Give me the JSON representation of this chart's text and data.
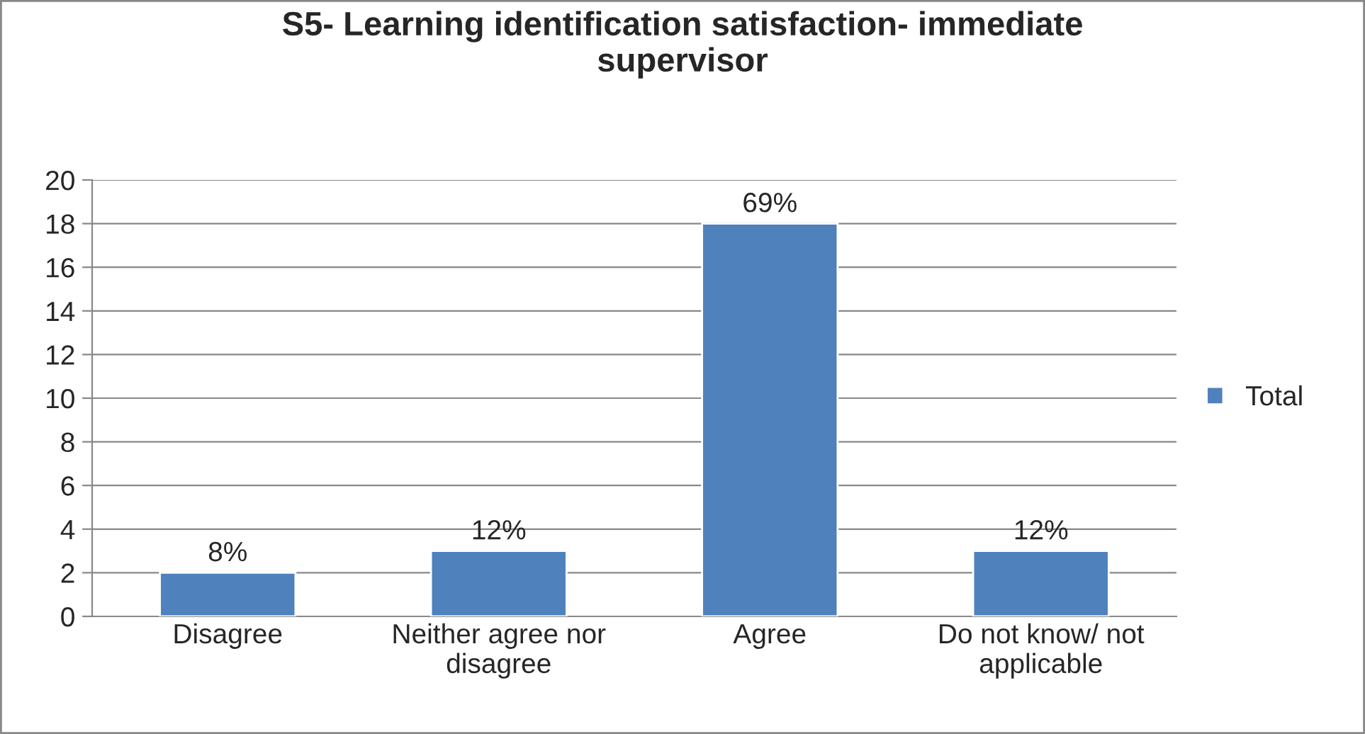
{
  "chart_data": {
    "type": "bar",
    "title": "S5- Learning identification satisfaction- immediate\nsupervisor",
    "categories": [
      "Disagree",
      "Neither agree nor\ndisagree",
      "Agree",
      "Do not know/ not\napplicable"
    ],
    "series": [
      {
        "name": "Total",
        "color": "#4f81bd",
        "values": [
          2,
          3,
          18,
          3
        ]
      }
    ],
    "annotations": [
      {
        "text": "8%",
        "x": "Disagree",
        "y": 2
      },
      {
        "text": "12%",
        "x": "Neither agree nor\ndisagree",
        "y": 3
      },
      {
        "text": "69%",
        "x": "Agree",
        "y": 18
      },
      {
        "text": "12%",
        "x": "Do not know/ not\napplicable",
        "y": 3
      }
    ],
    "ylim": [
      0,
      20
    ],
    "yticks": [
      0,
      2,
      4,
      6,
      8,
      10,
      12,
      14,
      16,
      18,
      20
    ],
    "grid": "y",
    "legend": "right"
  }
}
